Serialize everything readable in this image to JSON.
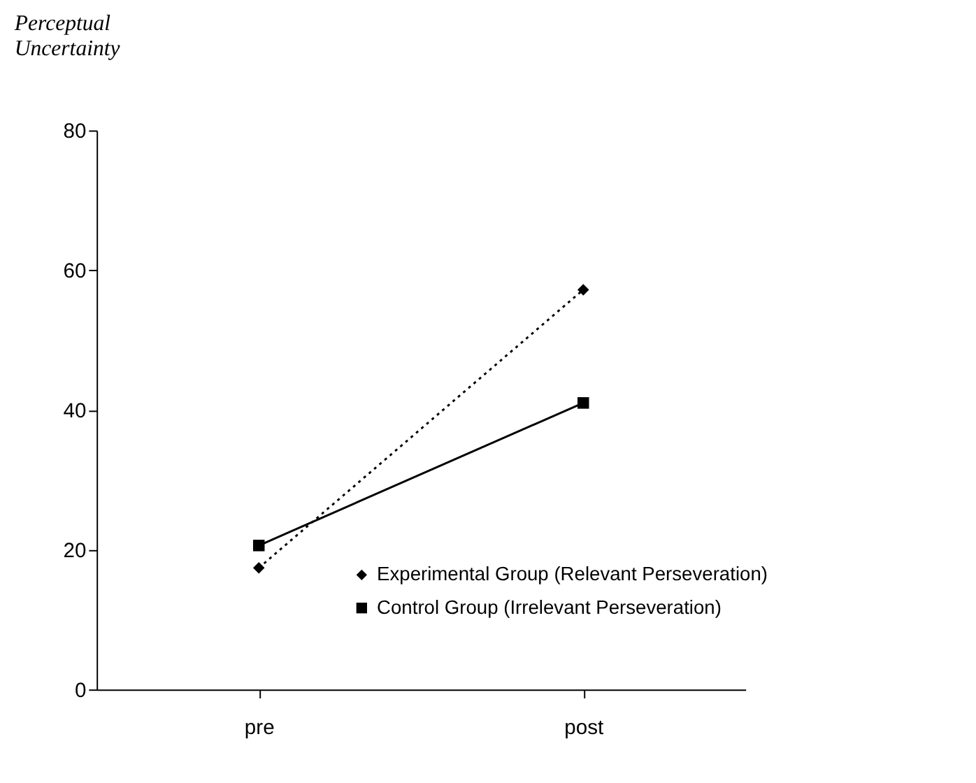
{
  "chart_data": {
    "type": "line",
    "ylabel": "Perceptual Uncertainty",
    "categories": [
      "pre",
      "post"
    ],
    "series": [
      {
        "name": "Experimental Group (Relevant Perseveration)",
        "color": "#000000",
        "values": [
          17.4,
          57.2
        ],
        "marker": "diamond",
        "line_style": "dotted"
      },
      {
        "name": "Control Group (Irrelevant Perseveration)",
        "color": "#000000",
        "values": [
          20.6,
          41.0
        ],
        "marker": "square",
        "line_style": "solid"
      }
    ],
    "ylim": [
      0,
      80
    ],
    "yticks": [
      0,
      20,
      40,
      60,
      80
    ],
    "grid": false,
    "legend": "bottom right"
  }
}
